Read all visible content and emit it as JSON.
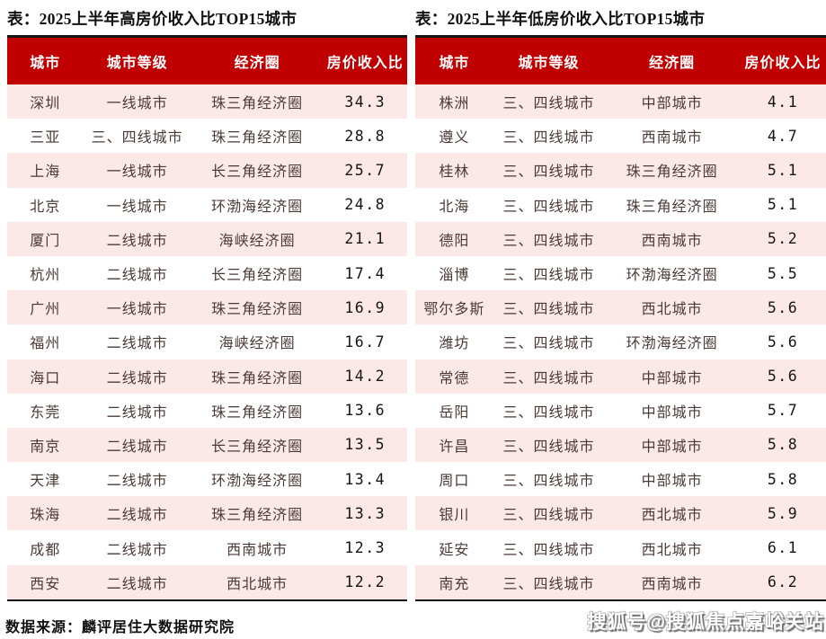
{
  "colors": {
    "header_bg": "#c00000",
    "header_text": "#ffffff",
    "row_alt_bg": "#fce9e7",
    "row_bg": "#ffffff",
    "border_dark": "#151515",
    "title_text": "#111111",
    "body_text": "#4a3a36",
    "number_text": "#141414",
    "watermark_text": "#ffffff",
    "watermark_shadow": "#6e6e6e"
  },
  "chart_data": [
    {
      "type": "table",
      "title": "表：2025上半年高房价收入比TOP15城市",
      "columns": [
        "城市",
        "城市等级",
        "经济圈",
        "房价收入比"
      ],
      "rows": [
        [
          "深圳",
          "一线城市",
          "珠三角经济圈",
          34.3
        ],
        [
          "三亚",
          "三、四线城市",
          "珠三角经济圈",
          28.8
        ],
        [
          "上海",
          "一线城市",
          "长三角经济圈",
          25.7
        ],
        [
          "北京",
          "一线城市",
          "环渤海经济圈",
          24.8
        ],
        [
          "厦门",
          "二线城市",
          "海峡经济圈",
          21.1
        ],
        [
          "杭州",
          "二线城市",
          "长三角经济圈",
          17.4
        ],
        [
          "广州",
          "一线城市",
          "珠三角经济圈",
          16.9
        ],
        [
          "福州",
          "二线城市",
          "海峡经济圈",
          16.7
        ],
        [
          "海口",
          "二线城市",
          "珠三角经济圈",
          14.2
        ],
        [
          "东莞",
          "二线城市",
          "珠三角经济圈",
          13.6
        ],
        [
          "南京",
          "二线城市",
          "长三角经济圈",
          13.5
        ],
        [
          "天津",
          "二线城市",
          "环渤海经济圈",
          13.4
        ],
        [
          "珠海",
          "二线城市",
          "珠三角经济圈",
          13.3
        ],
        [
          "成都",
          "二线城市",
          "西南城市",
          12.3
        ],
        [
          "西安",
          "二线城市",
          "西北城市",
          12.2
        ]
      ]
    },
    {
      "type": "table",
      "title": "表：2025上半年低房价收入比TOP15城市",
      "columns": [
        "城市",
        "城市等级",
        "经济圈",
        "房价收入比"
      ],
      "rows": [
        [
          "株洲",
          "三、四线城市",
          "中部城市",
          4.1
        ],
        [
          "遵义",
          "三、四线城市",
          "西南城市",
          4.7
        ],
        [
          "桂林",
          "三、四线城市",
          "珠三角经济圈",
          5.1
        ],
        [
          "北海",
          "三、四线城市",
          "珠三角经济圈",
          5.1
        ],
        [
          "德阳",
          "三、四线城市",
          "西南城市",
          5.2
        ],
        [
          "淄博",
          "三、四线城市",
          "环渤海经济圈",
          5.5
        ],
        [
          "鄂尔多斯",
          "三、四线城市",
          "西北城市",
          5.6
        ],
        [
          "潍坊",
          "三、四线城市",
          "环渤海经济圈",
          5.6
        ],
        [
          "常德",
          "三、四线城市",
          "中部城市",
          5.6
        ],
        [
          "岳阳",
          "三、四线城市",
          "中部城市",
          5.7
        ],
        [
          "许昌",
          "三、四线城市",
          "中部城市",
          5.8
        ],
        [
          "周口",
          "三、四线城市",
          "中部城市",
          5.8
        ],
        [
          "银川",
          "三、四线城市",
          "西北城市",
          5.9
        ],
        [
          "延安",
          "三、四线城市",
          "西北城市",
          6.1
        ],
        [
          "南充",
          "三、四线城市",
          "西南城市",
          6.2
        ]
      ]
    }
  ],
  "footer": {
    "source": "数据来源：麟评居住大数据研究院",
    "watermark": "搜狐号@搜狐焦点嘉峪关站"
  }
}
